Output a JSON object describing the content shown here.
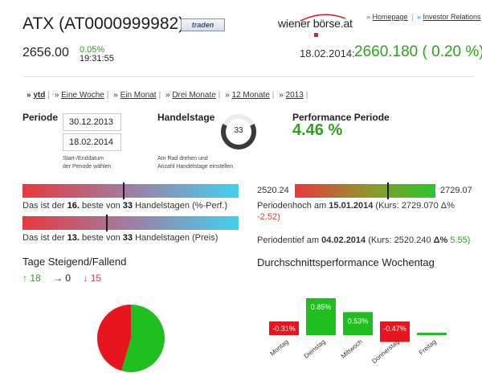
{
  "header": {
    "title": "ATX (AT0000999982)",
    "trade_button": "traden",
    "logo": "wiener börse.at",
    "links": [
      {
        "label": "Homepage"
      },
      {
        "label": "Investor Relations"
      }
    ],
    "price": "2656.00",
    "change_pct": "0.05%",
    "time": "19:31:55",
    "ref_date": "18.02.2014:",
    "ref_value": "2660.180 ( 0.20 %)"
  },
  "period_links": [
    {
      "label": "ytd",
      "active": true
    },
    {
      "label": "Eine Woche"
    },
    {
      "label": "Ein Monat"
    },
    {
      "label": "Drei Monate"
    },
    {
      "label": "12 Monate"
    },
    {
      "label": "2013"
    }
  ],
  "periode": {
    "label": "Periode",
    "start": "30.12.2013",
    "end": "18.02.2014",
    "help_line1": "Start-/Enddatum",
    "help_line2": "der Periode wählen"
  },
  "handelstage": {
    "label": "Handelstage",
    "value": "33",
    "fraction": 0.65,
    "help_line1": "Am Rad drehen und",
    "help_line2": "Anzahl Handelstage einstellen"
  },
  "performance": {
    "label": "Performance Periode",
    "value": "4.46 %"
  },
  "ranks": [
    {
      "prefix": "Das ist der",
      "rank": "16.",
      "mid": "beste von",
      "total": "33",
      "suffix": "Handelstagen (%-Perf.)",
      "position": 0.47
    },
    {
      "prefix": "Das ist der",
      "rank": "13.",
      "mid": "beste von",
      "total": "33",
      "suffix": "Handelstagen (Preis)",
      "position": 0.39
    }
  ],
  "range": {
    "min": "2520.24",
    "max": "2729.07",
    "position": 0.66,
    "hoch_prefix": "Periodenhoch am",
    "hoch_date": "15.01.2014",
    "hoch_kurs": "(Kurs: 2729.070 Δ%",
    "hoch_delta": "-2.52)",
    "tief_prefix": "Periodentief am",
    "tief_date": "04.02.2014",
    "tief_kurs": "(Kurs: 2520.240",
    "tief_delta_label": "Δ%",
    "tief_delta": "5.55)"
  },
  "tage": {
    "title": "Tage Steigend/Fallend",
    "up": "↑ 18",
    "flat": "→ 0",
    "down": "↓ 15"
  },
  "colors": {
    "up": "#2aa31a",
    "down": "#d43a3a",
    "bar_green": "#1fbf1f",
    "bar_red": "#e8141e"
  },
  "chart_data": {
    "type": "bar",
    "title": "Durchschnittsperformance Wochentag",
    "categories": [
      "Montag",
      "Dienstag",
      "Mittwoch",
      "Donnerstag",
      "Freitag"
    ],
    "values": [
      -0.31,
      0.85,
      0.53,
      -0.47,
      0.03
    ],
    "data_labels": [
      "-0.31%",
      "0.85%",
      "0.53%",
      "-0.47%",
      ""
    ]
  }
}
